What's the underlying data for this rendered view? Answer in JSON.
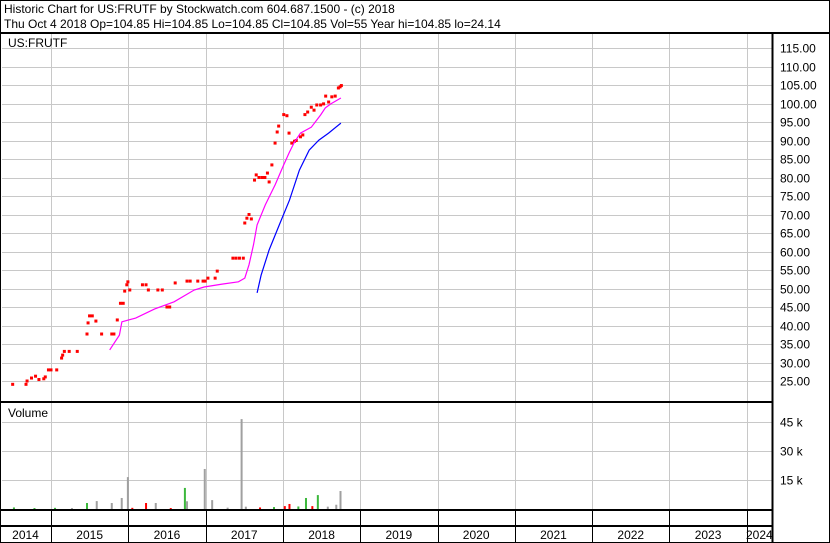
{
  "header": {
    "line1": "Historic Chart for US:FRUTF by Stockwatch.com 604.687.1500 - (c) 2018",
    "line2": "Thu Oct  4 2018  Op=104.85  Hi=104.85  Lo=104.85  Cl=104.85  Vol=55  Year hi=104.85  lo=24.14"
  },
  "colors": {
    "price": "#ff0000",
    "ma_short": "#ff00ff",
    "ma_long": "#0000ff",
    "vol_up": "#3cb83c",
    "vol_down": "#ff0000",
    "vol_flat": "#a0a0a0",
    "grid": "#c8c8c8"
  },
  "chart_data": [
    {
      "type": "scatter",
      "title": "US:FRUTF",
      "ylim": [
        25,
        115
      ],
      "yticks": [
        "115.00",
        "110.00",
        "105.00",
        "100.00",
        "95.00",
        "90.00",
        "85.00",
        "80.00",
        "75.00",
        "70.00",
        "65.00",
        "60.00",
        "55.00",
        "50.00",
        "45.00",
        "40.00",
        "35.00",
        "30.00",
        "25.00"
      ],
      "grid": true,
      "series": [
        {
          "kind": "price",
          "points": [
            [
              "2014-07-04",
              24.1
            ],
            [
              "2014-09-05",
              24.1
            ],
            [
              "2014-09-10",
              25.0
            ],
            [
              "2014-10-01",
              25.8
            ],
            [
              "2014-10-20",
              26.3
            ],
            [
              "2014-11-05",
              25.4
            ],
            [
              "2014-11-28",
              25.6
            ],
            [
              "2014-12-05",
              26.1
            ],
            [
              "2014-12-20",
              28.0
            ],
            [
              "2015-01-01",
              28.0
            ],
            [
              "2015-01-28",
              28.0
            ],
            [
              "2015-02-20",
              31.2
            ],
            [
              "2015-02-25",
              32.0
            ],
            [
              "2015-03-05",
              33.0
            ],
            [
              "2015-03-28",
              33.0
            ],
            [
              "2015-05-05",
              33.0
            ],
            [
              "2015-06-20",
              37.7
            ],
            [
              "2015-06-25",
              40.7
            ],
            [
              "2015-07-02",
              42.6
            ],
            [
              "2015-07-15",
              42.6
            ],
            [
              "2015-08-01",
              41.2
            ],
            [
              "2015-08-28",
              37.7
            ],
            [
              "2015-10-15",
              37.7
            ],
            [
              "2015-10-25",
              37.7
            ],
            [
              "2015-11-10",
              41.5
            ],
            [
              "2015-11-25",
              46.0
            ],
            [
              "2015-12-08",
              46.0
            ],
            [
              "2015-12-15",
              49.3
            ],
            [
              "2015-12-25",
              51.0
            ],
            [
              "2015-12-30",
              51.8
            ],
            [
              "2016-01-08",
              49.6
            ],
            [
              "2016-03-08",
              51.0
            ],
            [
              "2016-03-25",
              51.0
            ],
            [
              "2016-04-05",
              49.6
            ],
            [
              "2016-05-20",
              49.6
            ],
            [
              "2016-06-10",
              49.6
            ],
            [
              "2016-07-02",
              45.0
            ],
            [
              "2016-07-15",
              45.0
            ],
            [
              "2016-08-10",
              51.5
            ],
            [
              "2016-10-05",
              52.0
            ],
            [
              "2016-10-20",
              52.0
            ],
            [
              "2016-11-25",
              52.0
            ],
            [
              "2016-12-20",
              52.0
            ],
            [
              "2016-12-30",
              52.0
            ],
            [
              "2017-01-12",
              52.8
            ],
            [
              "2017-02-15",
              52.8
            ],
            [
              "2017-02-25",
              54.7
            ],
            [
              "2017-05-10",
              58.2
            ],
            [
              "2017-05-25",
              58.2
            ],
            [
              "2017-06-10",
              58.2
            ],
            [
              "2017-06-28",
              58.2
            ],
            [
              "2017-07-05",
              67.7
            ],
            [
              "2017-07-15",
              69.0
            ],
            [
              "2017-07-25",
              70.0
            ],
            [
              "2017-08-05",
              68.8
            ],
            [
              "2017-08-20",
              79.3
            ],
            [
              "2017-08-28",
              80.7
            ],
            [
              "2017-09-10",
              80.0
            ],
            [
              "2017-09-25",
              80.0
            ],
            [
              "2017-10-08",
              80.0
            ],
            [
              "2017-10-20",
              81.2
            ],
            [
              "2017-10-28",
              78.8
            ],
            [
              "2017-11-10",
              83.4
            ],
            [
              "2017-11-25",
              89.3
            ],
            [
              "2017-12-05",
              92.3
            ],
            [
              "2017-12-12",
              93.9
            ],
            [
              "2018-01-05",
              97.0
            ],
            [
              "2018-01-20",
              96.7
            ],
            [
              "2018-01-30",
              92.0
            ],
            [
              "2018-02-12",
              89.3
            ],
            [
              "2018-02-25",
              89.8
            ],
            [
              "2018-03-05",
              90.0
            ],
            [
              "2018-03-25",
              91.0
            ],
            [
              "2018-04-05",
              91.5
            ],
            [
              "2018-04-15",
              97.0
            ],
            [
              "2018-04-28",
              97.7
            ],
            [
              "2018-05-15",
              99.0
            ],
            [
              "2018-05-28",
              98.2
            ],
            [
              "2018-06-10",
              99.6
            ],
            [
              "2018-06-28",
              99.6
            ],
            [
              "2018-07-12",
              99.9
            ],
            [
              "2018-07-22",
              102.0
            ],
            [
              "2018-08-05",
              100.4
            ],
            [
              "2018-08-20",
              101.8
            ],
            [
              "2018-09-05",
              102.0
            ],
            [
              "2018-09-20",
              104.2
            ],
            [
              "2018-09-28",
              104.5
            ],
            [
              "2018-10-04",
              104.85
            ]
          ]
        },
        {
          "kind": "ma_short",
          "points": [
            [
              "2015-10-05",
              33.4
            ],
            [
              "2015-11-20",
              37.4
            ],
            [
              "2015-12-02",
              41.0
            ],
            [
              "2016-02-05",
              42.0
            ],
            [
              "2016-05-05",
              44.5
            ],
            [
              "2016-08-05",
              46.4
            ],
            [
              "2016-11-08",
              49.6
            ],
            [
              "2016-12-25",
              50.4
            ],
            [
              "2017-03-20",
              51.2
            ],
            [
              "2017-06-05",
              51.8
            ],
            [
              "2017-07-05",
              52.8
            ],
            [
              "2017-07-25",
              56.4
            ],
            [
              "2017-08-15",
              61.8
            ],
            [
              "2017-09-01",
              67.2
            ],
            [
              "2017-10-10",
              72.6
            ],
            [
              "2017-11-25",
              78.0
            ],
            [
              "2018-01-05",
              83.4
            ],
            [
              "2018-02-01",
              86.9
            ],
            [
              "2018-02-25",
              89.6
            ],
            [
              "2018-03-25",
              92.0
            ],
            [
              "2018-05-15",
              93.6
            ],
            [
              "2018-06-28",
              96.9
            ],
            [
              "2018-07-20",
              98.8
            ],
            [
              "2018-08-15",
              99.9
            ],
            [
              "2018-10-02",
              101.5
            ]
          ]
        },
        {
          "kind": "ma_long",
          "points": [
            [
              "2017-09-01",
              48.8
            ],
            [
              "2017-09-20",
              53.6
            ],
            [
              "2017-10-28",
              60.4
            ],
            [
              "2017-12-15",
              67.2
            ],
            [
              "2018-02-01",
              73.9
            ],
            [
              "2018-03-20",
              82.0
            ],
            [
              "2018-05-05",
              87.4
            ],
            [
              "2018-06-20",
              90.1
            ],
            [
              "2018-08-05",
              92.0
            ],
            [
              "2018-10-02",
              94.7
            ]
          ]
        }
      ]
    },
    {
      "type": "bar",
      "title": "Volume",
      "ylim": [
        0,
        55000
      ],
      "yticks": [
        {
          "value": 45000,
          "label": "45 k"
        },
        {
          "value": 30000,
          "label": "30 k"
        },
        {
          "value": 15000,
          "label": "15 k"
        }
      ],
      "grid": true,
      "bars": [
        [
          "2014-07-10",
          800,
          "up"
        ],
        [
          "2014-10-15",
          500,
          "up"
        ],
        [
          "2015-01-20",
          600,
          "up"
        ],
        [
          "2015-04-10",
          500,
          "flat"
        ],
        [
          "2015-06-20",
          3100,
          "up"
        ],
        [
          "2015-08-05",
          4100,
          "flat"
        ],
        [
          "2015-10-15",
          3100,
          "flat"
        ],
        [
          "2015-12-01",
          5700,
          "flat"
        ],
        [
          "2015-12-30",
          16500,
          "flat"
        ],
        [
          "2016-01-20",
          600,
          "down"
        ],
        [
          "2016-03-25",
          3100,
          "down"
        ],
        [
          "2016-05-10",
          3100,
          "flat"
        ],
        [
          "2016-07-20",
          500,
          "down"
        ],
        [
          "2016-09-25",
          10900,
          "up"
        ],
        [
          "2016-10-05",
          4000,
          "flat"
        ],
        [
          "2016-12-28",
          20700,
          "flat"
        ],
        [
          "2017-02-01",
          4600,
          "flat"
        ],
        [
          "2017-04-15",
          700,
          "flat"
        ],
        [
          "2017-06-20",
          46500,
          "flat"
        ],
        [
          "2017-07-10",
          1200,
          "flat"
        ],
        [
          "2017-09-15",
          800,
          "down"
        ],
        [
          "2017-11-20",
          1000,
          "up"
        ],
        [
          "2018-01-10",
          1500,
          "down"
        ],
        [
          "2018-02-01",
          2600,
          "down"
        ],
        [
          "2018-03-15",
          1300,
          "up"
        ],
        [
          "2018-04-20",
          5700,
          "up"
        ],
        [
          "2018-05-20",
          1500,
          "down"
        ],
        [
          "2018-06-15",
          7200,
          "up"
        ],
        [
          "2018-08-01",
          1200,
          "flat"
        ],
        [
          "2018-09-10",
          2200,
          "flat"
        ],
        [
          "2018-09-30",
          9300,
          "flat"
        ]
      ]
    }
  ],
  "xaxis": {
    "years": [
      "2014",
      "2015",
      "2016",
      "2017",
      "2018",
      "2019",
      "2020",
      "2021",
      "2022",
      "2023",
      "2024"
    ]
  }
}
